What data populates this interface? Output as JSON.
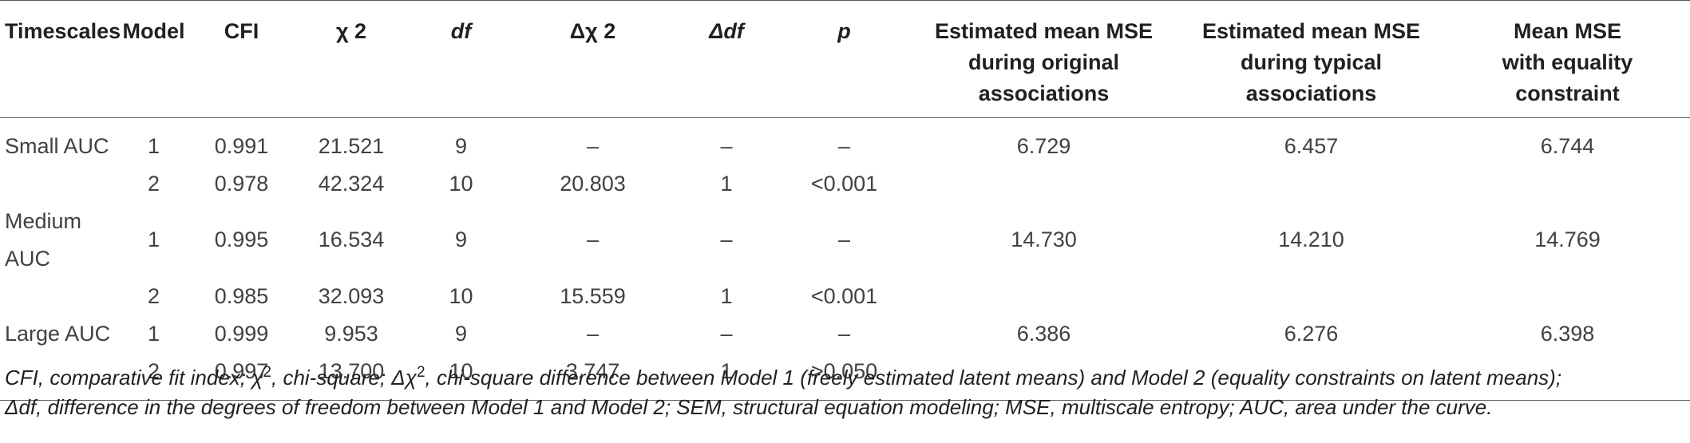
{
  "table": {
    "headers": {
      "timescales": "Timescales",
      "model": "Model",
      "cfi": "CFI",
      "chi2": "χ 2",
      "df": "df",
      "delta_chi2": "Δχ 2",
      "delta_df": "Δdf",
      "p": "p",
      "mse_original": [
        "Estimated mean MSE",
        "during original",
        "associations"
      ],
      "mse_typical": [
        "Estimated mean MSE",
        "during typical",
        "associations"
      ],
      "mse_equality": [
        "Mean MSE",
        "with equality",
        "constraint"
      ]
    },
    "rows": [
      {
        "timescale": "Small AUC",
        "model": "1",
        "cfi": "0.991",
        "chi2": "21.521",
        "df": "9",
        "delta_chi2": "–",
        "delta_df": "–",
        "p": "–",
        "mse_original": "6.729",
        "mse_typical": "6.457",
        "mse_equality": "6.744"
      },
      {
        "timescale": "",
        "model": "2",
        "cfi": "0.978",
        "chi2": "42.324",
        "df": "10",
        "delta_chi2": "20.803",
        "delta_df": "1",
        "p": "<0.001",
        "mse_original": "",
        "mse_typical": "",
        "mse_equality": ""
      },
      {
        "timescale": "Medium AUC",
        "model": "1",
        "cfi": "0.995",
        "chi2": "16.534",
        "df": "9",
        "delta_chi2": "–",
        "delta_df": "–",
        "p": "–",
        "mse_original": "14.730",
        "mse_typical": "14.210",
        "mse_equality": "14.769"
      },
      {
        "timescale": "",
        "model": "2",
        "cfi": "0.985",
        "chi2": "32.093",
        "df": "10",
        "delta_chi2": "15.559",
        "delta_df": "1",
        "p": "<0.001",
        "mse_original": "",
        "mse_typical": "",
        "mse_equality": ""
      },
      {
        "timescale": "Large AUC",
        "model": "1",
        "cfi": "0.999",
        "chi2": "9.953",
        "df": "9",
        "delta_chi2": "–",
        "delta_df": "–",
        "p": "–",
        "mse_original": "6.386",
        "mse_typical": "6.276",
        "mse_equality": "6.398"
      },
      {
        "timescale": "",
        "model": "2",
        "cfi": "0.997",
        "chi2": "13.700",
        "df": "10",
        "delta_chi2": "3.747",
        "delta_df": "1",
        "p": ">0.050",
        "mse_original": "",
        "mse_typical": "",
        "mse_equality": ""
      }
    ]
  },
  "footnote": {
    "line1": {
      "a": "CFI, comparative fit index; χ",
      "sup1": "2",
      "b": ", chi-square; Δχ",
      "sup2": "2",
      "c": ", chi-square difference between Model 1 (freely estimated latent means) and Model 2 (equality constraints on latent means);"
    },
    "line2": "Δdf, difference in the degrees of freedom between Model 1 and Model 2; SEM, structural equation modeling; MSE, multiscale entropy; AUC, area under the curve."
  }
}
